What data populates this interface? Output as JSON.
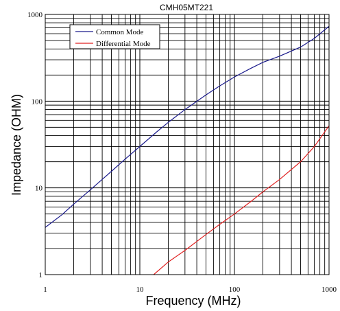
{
  "chart_data": {
    "type": "line",
    "title": "CMH05MT221",
    "xlabel": "Frequency (MHz)",
    "ylabel": "Impedance (OHM)",
    "x_scale": "log",
    "y_scale": "log",
    "xlim": [
      1,
      1000
    ],
    "ylim": [
      1,
      1000
    ],
    "x_ticks": [
      "1",
      "10",
      "100",
      "1000"
    ],
    "y_ticks": [
      "1",
      "10",
      "100",
      "1000"
    ],
    "grid": true,
    "legend_position": "top-left",
    "series": [
      {
        "name": "Common Mode",
        "color": "#1a1a8c",
        "x": [
          1,
          1.5,
          2,
          3,
          5,
          7,
          10,
          15,
          20,
          30,
          50,
          70,
          100,
          150,
          200,
          300,
          500,
          700,
          1000
        ],
        "y": [
          3.5,
          4.9,
          6.5,
          9.5,
          15.5,
          21.5,
          30,
          44,
          57,
          80,
          118,
          150,
          190,
          240,
          280,
          330,
          420,
          530,
          730
        ]
      },
      {
        "name": "Differential Mode",
        "color": "#e02020",
        "x": [
          14,
          20,
          30,
          50,
          70,
          100,
          150,
          200,
          300,
          500,
          700,
          1000
        ],
        "y": [
          1.0,
          1.4,
          1.9,
          2.9,
          3.8,
          5.0,
          7.0,
          9.0,
          12.5,
          20,
          30,
          52
        ]
      }
    ]
  }
}
